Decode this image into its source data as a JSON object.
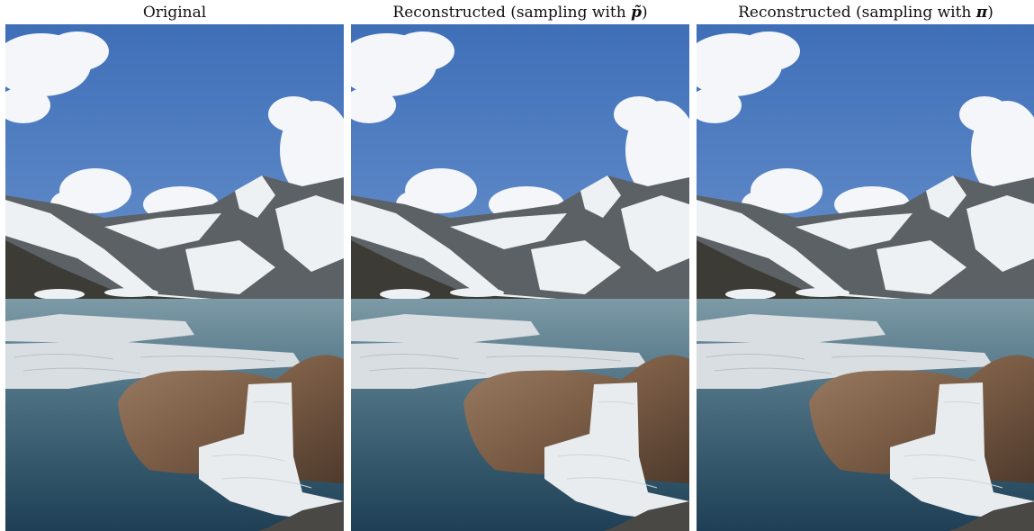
{
  "panels": [
    {
      "title": "Original",
      "symbol": ""
    },
    {
      "title": "Reconstructed (sampling with ",
      "symbol": "p̃",
      "title_end": ")"
    },
    {
      "title": "Reconstructed (sampling with ",
      "symbol": "π",
      "title_end": ")"
    }
  ]
}
